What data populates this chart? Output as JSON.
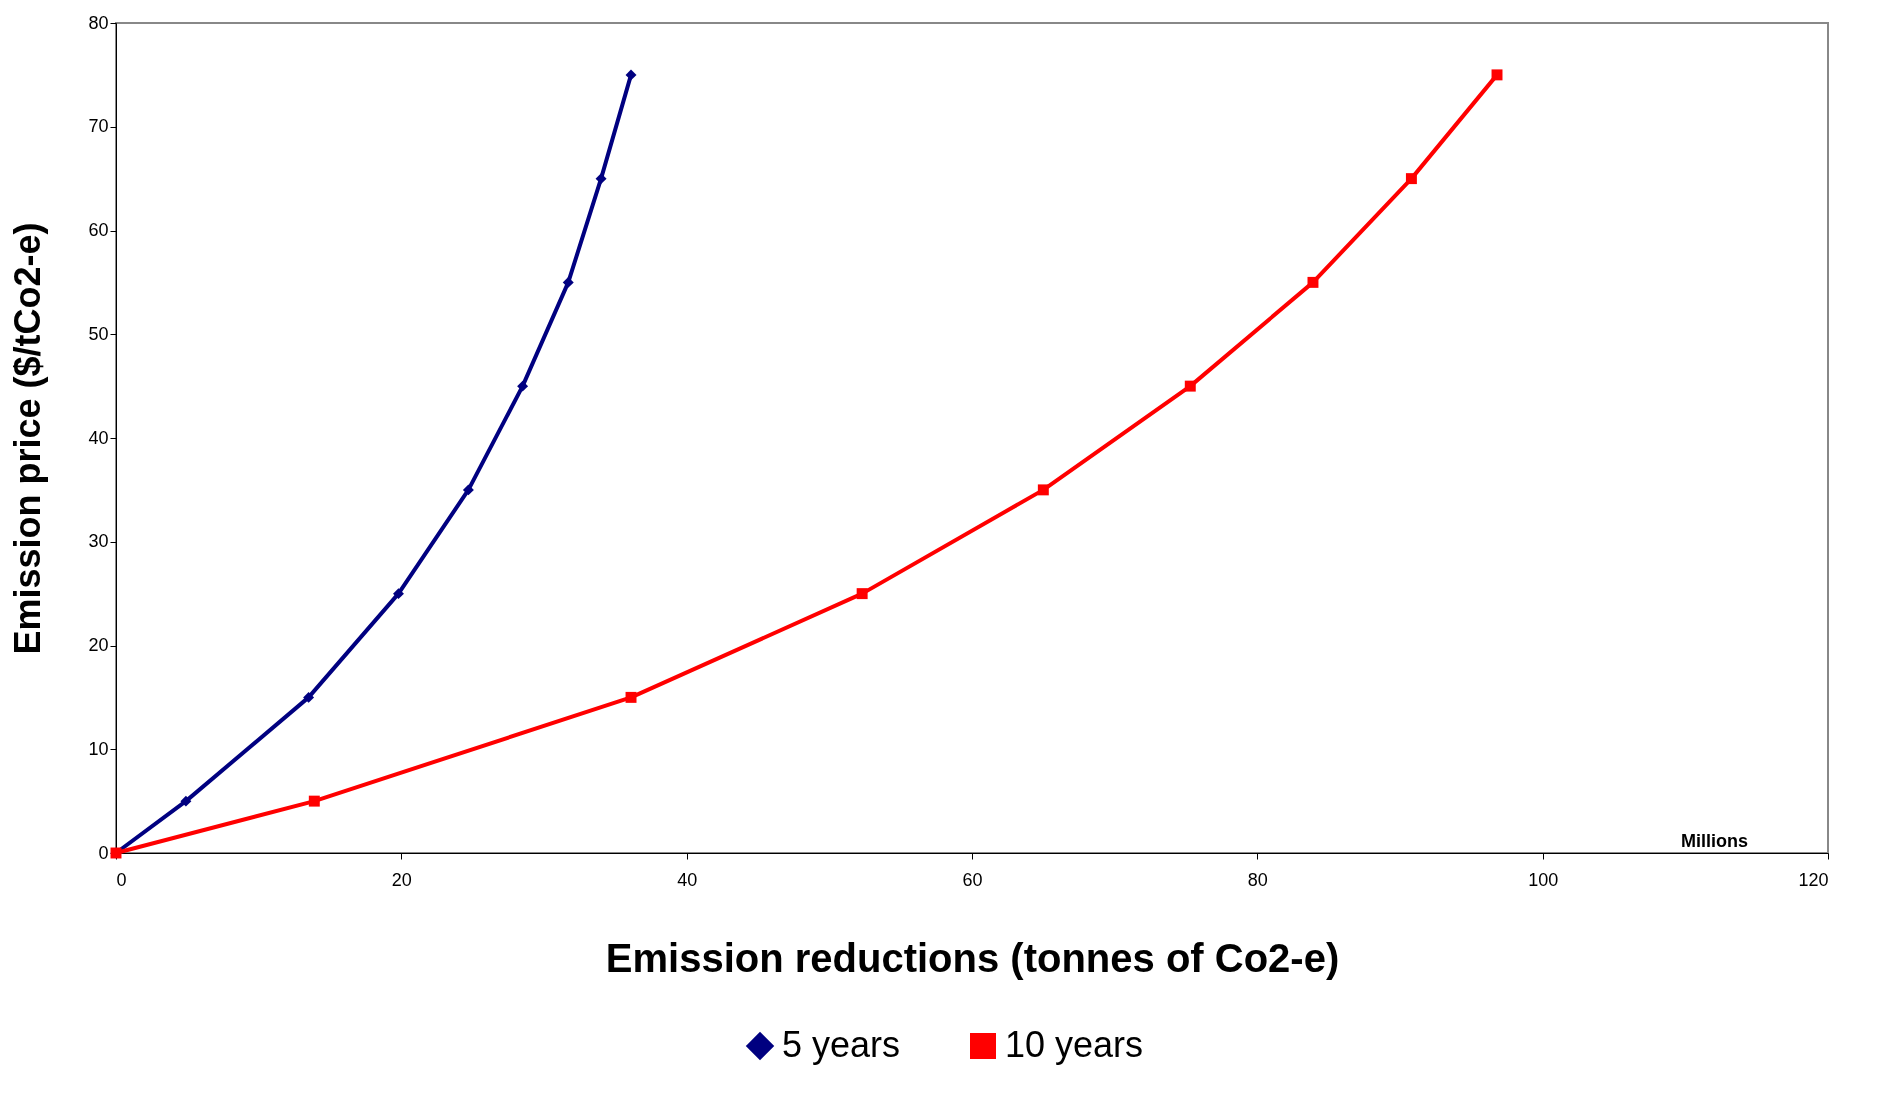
{
  "chart_data": {
    "type": "line",
    "xlabel": "Emission reductions (tonnes of Co2-e)",
    "ylabel": "Emission price ($/tCo2-e)",
    "annotations": [
      "Millions"
    ],
    "xlim": [
      0,
      120
    ],
    "xticks": [
      0,
      20,
      40,
      60,
      80,
      100,
      120
    ],
    "ylim": [
      0,
      80
    ],
    "yticks": [
      0,
      10,
      20,
      30,
      40,
      50,
      60,
      70,
      80
    ],
    "grid": false,
    "legend": "bottom",
    "series": [
      {
        "name": "5 years",
        "color": "#000080",
        "marker": "diamond",
        "x": [
          0,
          4.9,
          13.5,
          19.8,
          24.7,
          28.5,
          31.7,
          34.0,
          36.1
        ],
        "values": [
          0,
          5,
          15,
          25,
          35,
          45,
          55,
          65,
          75
        ]
      },
      {
        "name": "10 years",
        "color": "#ff0000",
        "marker": "square",
        "x": [
          0,
          13.9,
          36.1,
          52.3,
          65.0,
          75.3,
          83.9,
          90.8,
          96.8
        ],
        "values": [
          0,
          5,
          15,
          25,
          35,
          45,
          55,
          65,
          75
        ]
      }
    ]
  }
}
